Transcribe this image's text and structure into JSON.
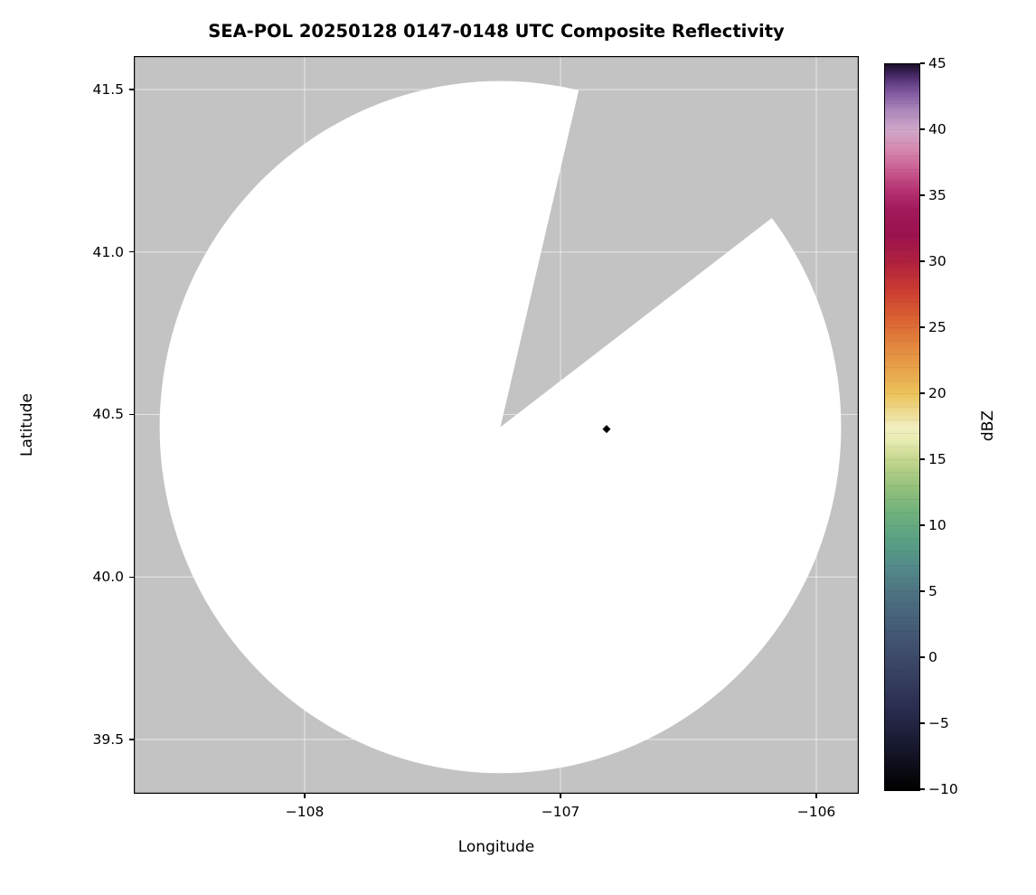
{
  "chart_data": {
    "type": "heatmap",
    "subtype": "radar-composite-reflectivity-ppi",
    "title": "SEA-POL 20250128 0147-0148 UTC Composite Reflectivity",
    "xlabel": "Longitude",
    "ylabel": "Latitude",
    "xlim": [
      -108.668,
      -105.834
    ],
    "ylim": [
      39.333,
      41.603
    ],
    "grid": true,
    "grid_color": "#ffffff",
    "no_data_color": "#c3c3c3",
    "coverage_color": "#ffffff",
    "xticks": [
      {
        "value": -108,
        "label": "−108"
      },
      {
        "value": -107,
        "label": "−107"
      },
      {
        "value": -106,
        "label": "−106"
      }
    ],
    "yticks": [
      {
        "value": 41.5,
        "label": "41.5"
      },
      {
        "value": 41.0,
        "label": "41.0"
      },
      {
        "value": 40.5,
        "label": "40.5"
      },
      {
        "value": 40.0,
        "label": "40.0"
      },
      {
        "value": 39.5,
        "label": "39.5"
      }
    ],
    "radar_coverage": {
      "center_lon": -107.235,
      "center_lat": 40.461,
      "radius_lon_deg": 1.332,
      "radius_lat_deg": 1.065,
      "missing_sector_azimuth_start_deg": 13.3,
      "missing_sector_azimuth_end_deg": 52.8
    },
    "marker": {
      "lon": -106.82,
      "lat": 40.455,
      "shape": "diamond",
      "color": "#000000"
    },
    "colorbar": {
      "label": "dBZ",
      "min": -10,
      "max": 45,
      "tick_step": 5,
      "ticks": [
        {
          "value": 45,
          "label": "45"
        },
        {
          "value": 40,
          "label": "40"
        },
        {
          "value": 35,
          "label": "35"
        },
        {
          "value": 30,
          "label": "30"
        },
        {
          "value": 25,
          "label": "25"
        },
        {
          "value": 20,
          "label": "20"
        },
        {
          "value": 15,
          "label": "15"
        },
        {
          "value": 10,
          "label": "10"
        },
        {
          "value": 5,
          "label": "5"
        },
        {
          "value": 0,
          "label": "0"
        },
        {
          "value": -5,
          "label": "−5"
        },
        {
          "value": -10,
          "label": "−10"
        }
      ],
      "stops": [
        [
          -10.0,
          "#000000"
        ],
        [
          -8.5,
          "#0b0b14"
        ],
        [
          -7.0,
          "#15162b"
        ],
        [
          -5.0,
          "#222442"
        ],
        [
          -3.0,
          "#2e3356"
        ],
        [
          -1.0,
          "#394263"
        ],
        [
          1.0,
          "#41516f"
        ],
        [
          3.0,
          "#476179"
        ],
        [
          5.0,
          "#4d7382"
        ],
        [
          7.0,
          "#538b89"
        ],
        [
          9.0,
          "#5ba184"
        ],
        [
          11.0,
          "#70b17c"
        ],
        [
          13.0,
          "#95c17b"
        ],
        [
          15.0,
          "#c3d68e"
        ],
        [
          16.5,
          "#e9ecb2"
        ],
        [
          17.5,
          "#f1eec0"
        ],
        [
          18.5,
          "#eedd96"
        ],
        [
          20.0,
          "#ecc35c"
        ],
        [
          22.0,
          "#e8a149"
        ],
        [
          24.0,
          "#e2813c"
        ],
        [
          26.0,
          "#d85c31"
        ],
        [
          28.0,
          "#c93a31"
        ],
        [
          30.0,
          "#b0213f"
        ],
        [
          32.0,
          "#9c124e"
        ],
        [
          34.0,
          "#a2195c"
        ],
        [
          35.5,
          "#b63472"
        ],
        [
          37.0,
          "#ca5d92"
        ],
        [
          38.5,
          "#d687ae"
        ],
        [
          40.0,
          "#cfa8c9"
        ],
        [
          41.5,
          "#ab87bb"
        ],
        [
          43.0,
          "#7a549b"
        ],
        [
          44.0,
          "#4e2e6e"
        ],
        [
          45.0,
          "#1b0e2a"
        ]
      ]
    }
  }
}
